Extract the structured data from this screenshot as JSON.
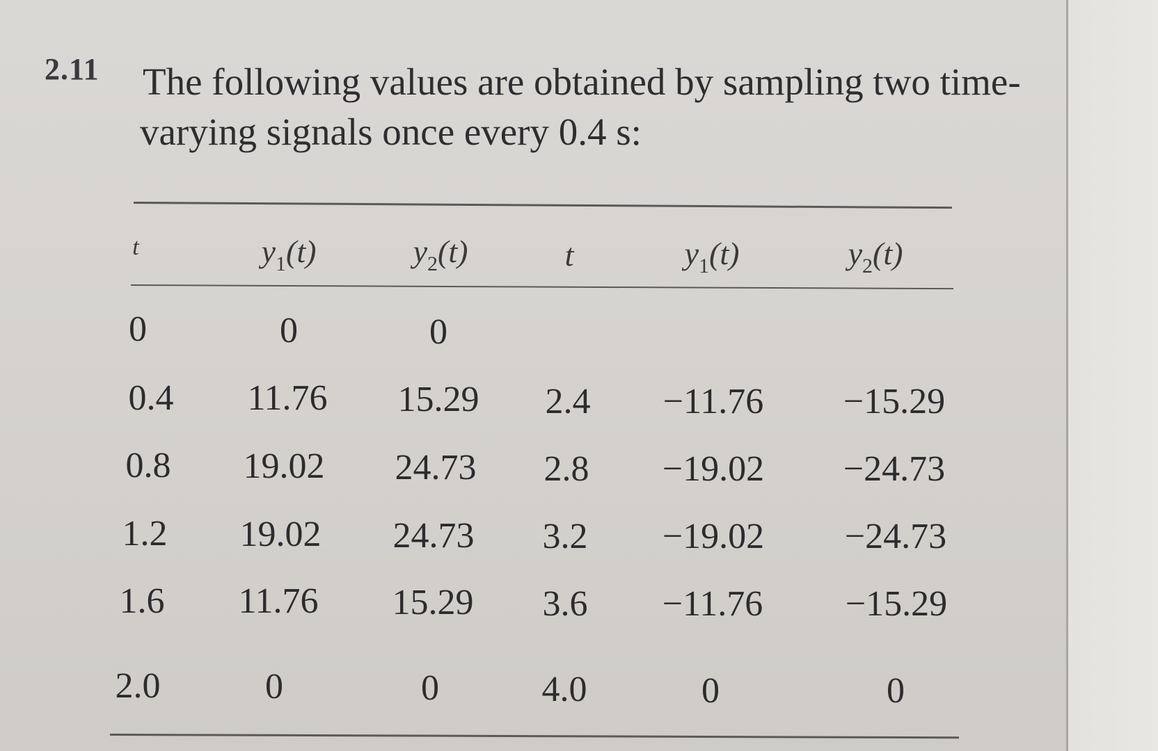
{
  "problem": {
    "number": "2.11",
    "text_line1": "The following values are obtained by sampling two time-",
    "text_line2": "varying signals once every 0.4 s:"
  },
  "table": {
    "headers": [
      {
        "sym": "t",
        "sub": ""
      },
      {
        "sym": "y",
        "sub": "1",
        "arg": "(t)"
      },
      {
        "sym": "y",
        "sub": "2",
        "arg": "(t)"
      },
      {
        "sym": "t",
        "sub": ""
      },
      {
        "sym": "y",
        "sub": "1",
        "arg": "(t)"
      },
      {
        "sym": "y",
        "sub": "2",
        "arg": "(t)"
      }
    ],
    "rows": [
      [
        "0",
        "0",
        "0",
        "",
        "",
        ""
      ],
      [
        "0.4",
        "11.76",
        "15.29",
        "2.4",
        "−11.76",
        "−15.29"
      ],
      [
        "0.8",
        "19.02",
        "24.73",
        "2.8",
        "−19.02",
        "−24.73"
      ],
      [
        "1.2",
        "19.02",
        "24.73",
        "3.2",
        "−19.02",
        "−24.73"
      ],
      [
        "1.6",
        "11.76",
        "15.29",
        "3.6",
        "−11.76",
        "−15.29"
      ],
      [
        "2.0",
        "0",
        "0",
        "4.0",
        "0",
        "0"
      ]
    ]
  }
}
